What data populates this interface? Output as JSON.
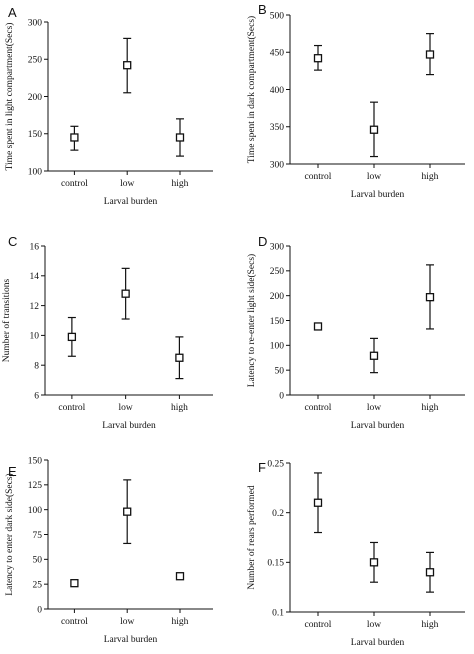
{
  "chart_data": [
    {
      "panel": "A",
      "type": "scatter",
      "categories": [
        "control",
        "low",
        "high"
      ],
      "values": [
        145,
        242,
        145
      ],
      "error_low": [
        128,
        205,
        120
      ],
      "error_high": [
        160,
        278,
        170
      ],
      "xlabel": "Larval burden",
      "ylabel": "Time spent in light compartment(Secs)",
      "ylim": [
        100,
        300
      ],
      "yticks": [
        100,
        150,
        200,
        250,
        300
      ],
      "ytick_labels": [
        "100",
        "150",
        "200",
        "250",
        "300"
      ],
      "grid": false
    },
    {
      "panel": "B",
      "type": "scatter",
      "categories": [
        "control",
        "low",
        "high"
      ],
      "values": [
        442,
        346,
        447
      ],
      "error_low": [
        426,
        310,
        420
      ],
      "error_high": [
        459,
        383,
        475
      ],
      "xlabel": "Larval burden",
      "ylabel": "Time spent in dark compartment(Secs)",
      "ylim": [
        300,
        500
      ],
      "yticks": [
        300,
        350,
        400,
        450,
        500
      ],
      "ytick_labels": [
        "300",
        "350",
        "400",
        "450",
        "500"
      ],
      "grid": false
    },
    {
      "panel": "C",
      "type": "scatter",
      "categories": [
        "control",
        "low",
        "high"
      ],
      "values": [
        9.9,
        12.8,
        8.5
      ],
      "error_low": [
        8.6,
        11.1,
        7.1
      ],
      "error_high": [
        11.2,
        14.5,
        9.9
      ],
      "xlabel": "Larval burden",
      "ylabel": "Number of transitions",
      "ylim": [
        6,
        16
      ],
      "yticks": [
        6,
        8,
        10,
        12,
        14,
        16
      ],
      "ytick_labels": [
        "6",
        "8",
        "10",
        "12",
        "14",
        "16"
      ],
      "grid": false
    },
    {
      "panel": "D",
      "type": "scatter",
      "categories": [
        "control",
        "low",
        "high"
      ],
      "values": [
        138,
        79,
        197
      ],
      "error_low": [
        138,
        45,
        133
      ],
      "error_high": [
        138,
        114,
        262
      ],
      "xlabel": "Larval burden",
      "ylabel": "Latency to re-enter light side(Secs)",
      "ylim": [
        0,
        300
      ],
      "yticks": [
        0,
        50,
        100,
        150,
        200,
        250,
        300
      ],
      "ytick_labels": [
        "0",
        "50",
        "100",
        "150",
        "200",
        "250",
        "300"
      ],
      "grid": false
    },
    {
      "panel": "E",
      "type": "scatter",
      "categories": [
        "control",
        "low",
        "high"
      ],
      "values": [
        26,
        98,
        33
      ],
      "error_low": [
        26,
        66,
        33
      ],
      "error_high": [
        26,
        130,
        33
      ],
      "xlabel": "Larval burden",
      "ylabel": "Latency to enter dark side(Secs)",
      "ylim": [
        0,
        150
      ],
      "yticks": [
        0,
        25,
        50,
        75,
        100,
        125,
        150
      ],
      "ytick_labels": [
        "0",
        "25",
        "50",
        "75",
        "100",
        "125",
        "150"
      ],
      "grid": false
    },
    {
      "panel": "F",
      "type": "scatter",
      "categories": [
        "control",
        "low",
        "high"
      ],
      "values": [
        0.21,
        0.15,
        0.14
      ],
      "error_low": [
        0.18,
        0.13,
        0.12
      ],
      "error_high": [
        0.24,
        0.17,
        0.16
      ],
      "xlabel": "Larval burden",
      "ylabel": "Number of rears performed",
      "ylim": [
        0.1,
        0.25
      ],
      "yticks": [
        0.1,
        0.15,
        0.2,
        0.25
      ],
      "ytick_labels": [
        "0.1",
        "0.15",
        "0.2",
        "0.25"
      ],
      "grid": false
    }
  ]
}
